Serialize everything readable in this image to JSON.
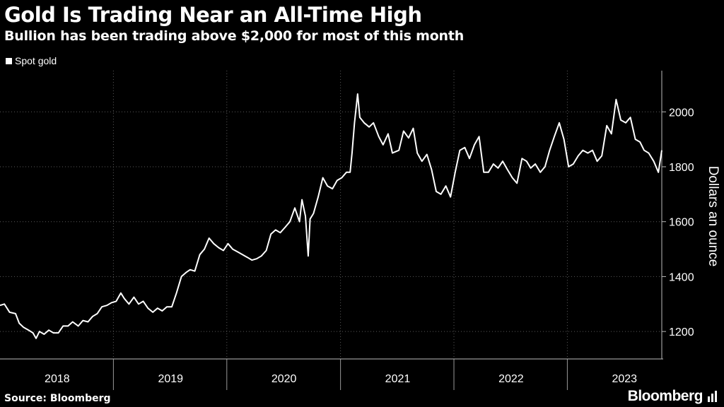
{
  "chart_data": {
    "type": "line",
    "title": "Gold Is Trading Near an All-Time High",
    "subtitle": "Bullion has been trading above $2,000 for most of this month",
    "ylabel": "Dollars an ounce",
    "ylim": [
      1100,
      2150
    ],
    "yticks": [
      1200,
      1400,
      1600,
      1800,
      2000
    ],
    "xlim": [
      "2017-07-01",
      "2023-05-01"
    ],
    "xticks": [
      {
        "label": "2018",
        "at": "2018-01-01"
      },
      {
        "label": "2019",
        "at": "2019-01-01"
      },
      {
        "label": "2020",
        "at": "2020-01-01"
      },
      {
        "label": "2021",
        "at": "2021-01-01"
      },
      {
        "label": "2022",
        "at": "2022-01-01"
      },
      {
        "label": "2023",
        "at": "2023-01-01"
      }
    ],
    "year_dividers": [
      "2018-07-01",
      "2019-07-01",
      "2020-07-01",
      "2021-07-01",
      "2022-07-01"
    ],
    "legend": {
      "position": "top-left"
    },
    "series": [
      {
        "name": "Spot gold",
        "color": "#ffffff",
        "points": [
          [
            "2017-07-01",
            1295
          ],
          [
            "2017-07-15",
            1300
          ],
          [
            "2017-08-01",
            1270
          ],
          [
            "2017-08-20",
            1265
          ],
          [
            "2017-09-01",
            1230
          ],
          [
            "2017-09-15",
            1215
          ],
          [
            "2017-10-01",
            1205
          ],
          [
            "2017-10-15",
            1195
          ],
          [
            "2017-10-25",
            1175
          ],
          [
            "2017-11-05",
            1200
          ],
          [
            "2017-11-20",
            1190
          ],
          [
            "2017-12-05",
            1205
          ],
          [
            "2017-12-20",
            1195
          ],
          [
            "2018-01-05",
            1195
          ],
          [
            "2018-01-20",
            1220
          ],
          [
            "2018-02-05",
            1220
          ],
          [
            "2018-02-20",
            1235
          ],
          [
            "2018-03-10",
            1220
          ],
          [
            "2018-03-25",
            1240
          ],
          [
            "2018-04-10",
            1235
          ],
          [
            "2018-04-25",
            1255
          ],
          [
            "2018-05-10",
            1265
          ],
          [
            "2018-05-25",
            1290
          ],
          [
            "2018-06-10",
            1295
          ],
          [
            "2018-06-25",
            1305
          ],
          [
            "2018-07-10",
            1310
          ],
          [
            "2018-07-25",
            1340
          ],
          [
            "2018-08-05",
            1320
          ],
          [
            "2018-08-20",
            1300
          ],
          [
            "2018-09-05",
            1325
          ],
          [
            "2018-09-20",
            1300
          ],
          [
            "2018-10-05",
            1310
          ],
          [
            "2018-10-20",
            1285
          ],
          [
            "2018-11-05",
            1270
          ],
          [
            "2018-11-20",
            1285
          ],
          [
            "2018-12-05",
            1275
          ],
          [
            "2018-12-20",
            1290
          ],
          [
            "2019-01-05",
            1290
          ],
          [
            "2019-01-20",
            1340
          ],
          [
            "2019-02-05",
            1400
          ],
          [
            "2019-02-20",
            1415
          ],
          [
            "2019-03-05",
            1425
          ],
          [
            "2019-03-20",
            1420
          ],
          [
            "2019-04-05",
            1480
          ],
          [
            "2019-04-20",
            1500
          ],
          [
            "2019-05-05",
            1540
          ],
          [
            "2019-05-20",
            1520
          ],
          [
            "2019-06-05",
            1505
          ],
          [
            "2019-06-20",
            1495
          ],
          [
            "2019-07-05",
            1520
          ],
          [
            "2019-07-20",
            1500
          ],
          [
            "2019-08-05",
            1490
          ],
          [
            "2019-08-20",
            1480
          ],
          [
            "2019-09-05",
            1470
          ],
          [
            "2019-09-20",
            1460
          ],
          [
            "2019-10-05",
            1465
          ],
          [
            "2019-10-20",
            1475
          ],
          [
            "2019-11-05",
            1495
          ],
          [
            "2019-11-20",
            1555
          ],
          [
            "2019-12-05",
            1570
          ],
          [
            "2019-12-20",
            1560
          ],
          [
            "2020-01-05",
            1580
          ],
          [
            "2020-01-20",
            1600
          ],
          [
            "2020-02-05",
            1650
          ],
          [
            "2020-02-20",
            1600
          ],
          [
            "2020-02-28",
            1680
          ],
          [
            "2020-03-10",
            1620
          ],
          [
            "2020-03-19",
            1475
          ],
          [
            "2020-03-25",
            1610
          ],
          [
            "2020-04-05",
            1630
          ],
          [
            "2020-04-20",
            1690
          ],
          [
            "2020-05-05",
            1760
          ],
          [
            "2020-05-20",
            1730
          ],
          [
            "2020-06-05",
            1720
          ],
          [
            "2020-06-20",
            1750
          ],
          [
            "2020-07-05",
            1760
          ],
          [
            "2020-07-20",
            1780
          ],
          [
            "2020-08-01",
            1780
          ],
          [
            "2020-08-07",
            1850
          ],
          [
            "2020-08-15",
            1960
          ],
          [
            "2020-08-25",
            2065
          ],
          [
            "2020-09-01",
            1980
          ],
          [
            "2020-09-15",
            1960
          ],
          [
            "2020-10-01",
            1945
          ],
          [
            "2020-10-15",
            1960
          ],
          [
            "2020-11-01",
            1910
          ],
          [
            "2020-11-15",
            1880
          ],
          [
            "2020-12-01",
            1920
          ],
          [
            "2020-12-15",
            1850
          ],
          [
            "2021-01-05",
            1860
          ],
          [
            "2021-01-20",
            1930
          ],
          [
            "2021-02-05",
            1905
          ],
          [
            "2021-02-20",
            1940
          ],
          [
            "2021-03-05",
            1850
          ],
          [
            "2021-03-20",
            1820
          ],
          [
            "2021-04-05",
            1845
          ],
          [
            "2021-04-20",
            1790
          ],
          [
            "2021-05-05",
            1710
          ],
          [
            "2021-05-20",
            1700
          ],
          [
            "2021-06-05",
            1730
          ],
          [
            "2021-06-20",
            1690
          ],
          [
            "2021-07-05",
            1780
          ],
          [
            "2021-07-20",
            1860
          ],
          [
            "2021-08-05",
            1870
          ],
          [
            "2021-08-20",
            1830
          ],
          [
            "2021-09-05",
            1880
          ],
          [
            "2021-09-20",
            1910
          ],
          [
            "2021-10-05",
            1780
          ],
          [
            "2021-10-20",
            1780
          ],
          [
            "2021-11-05",
            1810
          ],
          [
            "2021-11-20",
            1795
          ],
          [
            "2021-12-05",
            1820
          ],
          [
            "2021-12-20",
            1790
          ],
          [
            "2022-01-05",
            1760
          ],
          [
            "2022-01-20",
            1740
          ],
          [
            "2022-02-05",
            1830
          ],
          [
            "2022-02-20",
            1820
          ],
          [
            "2022-03-05",
            1795
          ],
          [
            "2022-03-20",
            1810
          ],
          [
            "2022-04-05",
            1780
          ],
          [
            "2022-04-20",
            1800
          ],
          [
            "2022-05-05",
            1860
          ],
          [
            "2022-05-20",
            1910
          ],
          [
            "2022-06-05",
            1960
          ],
          [
            "2022-06-20",
            1900
          ],
          [
            "2022-07-05",
            1800
          ],
          [
            "2022-07-20",
            1810
          ],
          [
            "2022-08-05",
            1840
          ],
          [
            "2022-08-20",
            1860
          ],
          [
            "2022-09-05",
            1850
          ],
          [
            "2022-09-20",
            1860
          ],
          [
            "2022-10-05",
            1820
          ],
          [
            "2022-10-20",
            1840
          ],
          [
            "2022-11-05",
            1950
          ],
          [
            "2022-11-20",
            1920
          ],
          [
            "2022-12-05",
            2045
          ],
          [
            "2022-12-20",
            1970
          ],
          [
            "2023-01-05",
            1960
          ],
          [
            "2023-01-20",
            1980
          ],
          [
            "2023-02-05",
            1900
          ],
          [
            "2023-02-20",
            1890
          ],
          [
            "2023-03-05",
            1860
          ],
          [
            "2023-03-20",
            1850
          ],
          [
            "2023-04-05",
            1820
          ],
          [
            "2023-04-20",
            1780
          ],
          [
            "2023-05-01",
            1860
          ]
        ]
      }
    ]
  },
  "footer": {
    "source": "Source: Bloomberg",
    "brand": "Bloomberg"
  }
}
